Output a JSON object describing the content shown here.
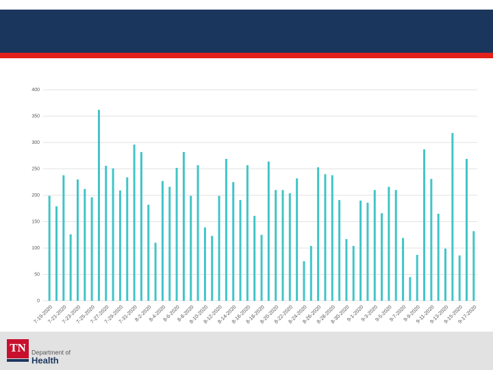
{
  "chart_data": {
    "type": "bar",
    "categories": [
      "7-19-2020",
      null,
      "7-21-2020",
      null,
      "7-23-2020",
      null,
      "7-25-2020",
      null,
      "7-27-2020",
      null,
      "7-29-2020",
      null,
      "7-31-2020",
      null,
      "8-2-2020",
      null,
      "8-4-2020",
      null,
      "8-6-2020",
      null,
      "8-8-2020",
      null,
      "8-10-2020",
      null,
      "8-12-2020",
      null,
      "8-14-2020",
      null,
      "8-16-2020",
      null,
      "8-18-2020",
      null,
      "8-20-2020",
      null,
      "8-22-2020",
      null,
      "8-24-2020",
      null,
      "8-26-2020",
      null,
      "8-28-2020",
      null,
      "8-30-2020",
      null,
      "9-1-2020",
      null,
      "9-3-2020",
      null,
      "9-5-2020",
      null,
      "9-7-2020",
      null,
      "9-9-2020",
      null,
      "9-11-2020",
      null,
      "9-13-2020",
      null,
      "9-15-2020",
      null,
      "9-17-2020"
    ],
    "values": [
      199,
      179,
      238,
      126,
      230,
      212,
      196,
      362,
      256,
      251,
      209,
      234,
      296,
      282,
      182,
      110,
      227,
      216,
      252,
      282,
      199,
      257,
      139,
      123,
      199,
      269,
      225,
      191,
      257,
      161,
      125,
      264,
      210,
      210,
      204,
      232,
      75,
      104,
      253,
      240,
      238,
      191,
      117,
      104,
      190,
      186,
      210,
      166,
      216,
      210,
      119,
      45,
      87,
      287,
      231,
      165,
      99,
      318,
      86,
      269,
      132
    ],
    "color": "#40c4c8",
    "ylim": [
      0,
      400
    ],
    "yticks": [
      0,
      50,
      100,
      150,
      200,
      250,
      300,
      350,
      400
    ],
    "grid": true
  },
  "logo": {
    "mark": "TN",
    "line1": "Department of",
    "line2": "Health"
  }
}
